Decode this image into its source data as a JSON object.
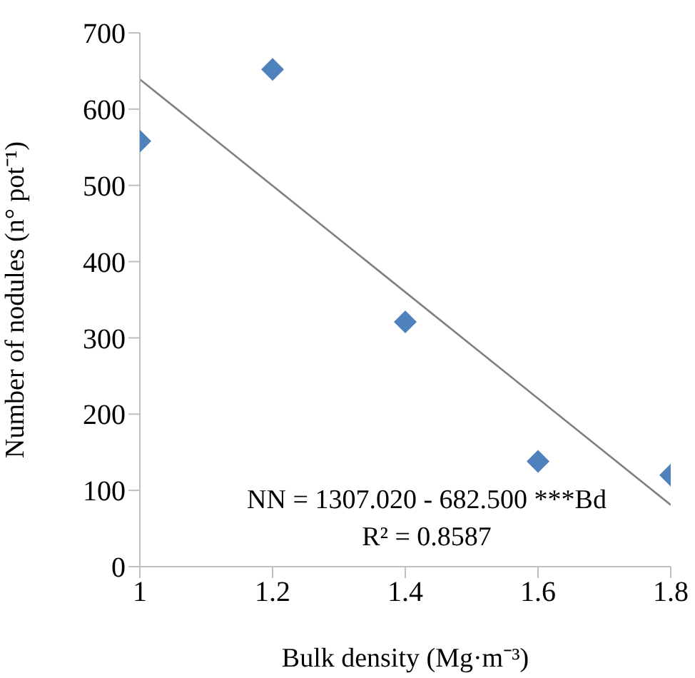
{
  "chart_data": {
    "type": "scatter",
    "xlabel": "Bulk density (Mg·m⁻³)",
    "ylabel": "Number of nodules (n° pot⁻¹)",
    "xlim": [
      1,
      1.8
    ],
    "xticks": [
      1,
      1.2,
      1.4,
      1.6,
      1.8
    ],
    "ylim": [
      0,
      700
    ],
    "yticks": [
      0,
      100,
      200,
      300,
      400,
      500,
      600,
      700
    ],
    "grid": false,
    "marker": "diamond",
    "series": [
      {
        "color": "#4f81bd",
        "x": [
          1,
          1.2,
          1.4,
          1.6,
          1.8
        ],
        "values": [
          558,
          652,
          321,
          138,
          120
        ]
      },
      {
        "type": "line",
        "color": "#7f7f7f",
        "x": [
          1,
          1.8
        ],
        "values": [
          639,
          81
        ],
        "marker": "none",
        "line_style": "solid"
      }
    ],
    "annotations": [
      "NN = 1307.020 - 682.500 ***Bd",
      "R² = 0.8587"
    ]
  }
}
